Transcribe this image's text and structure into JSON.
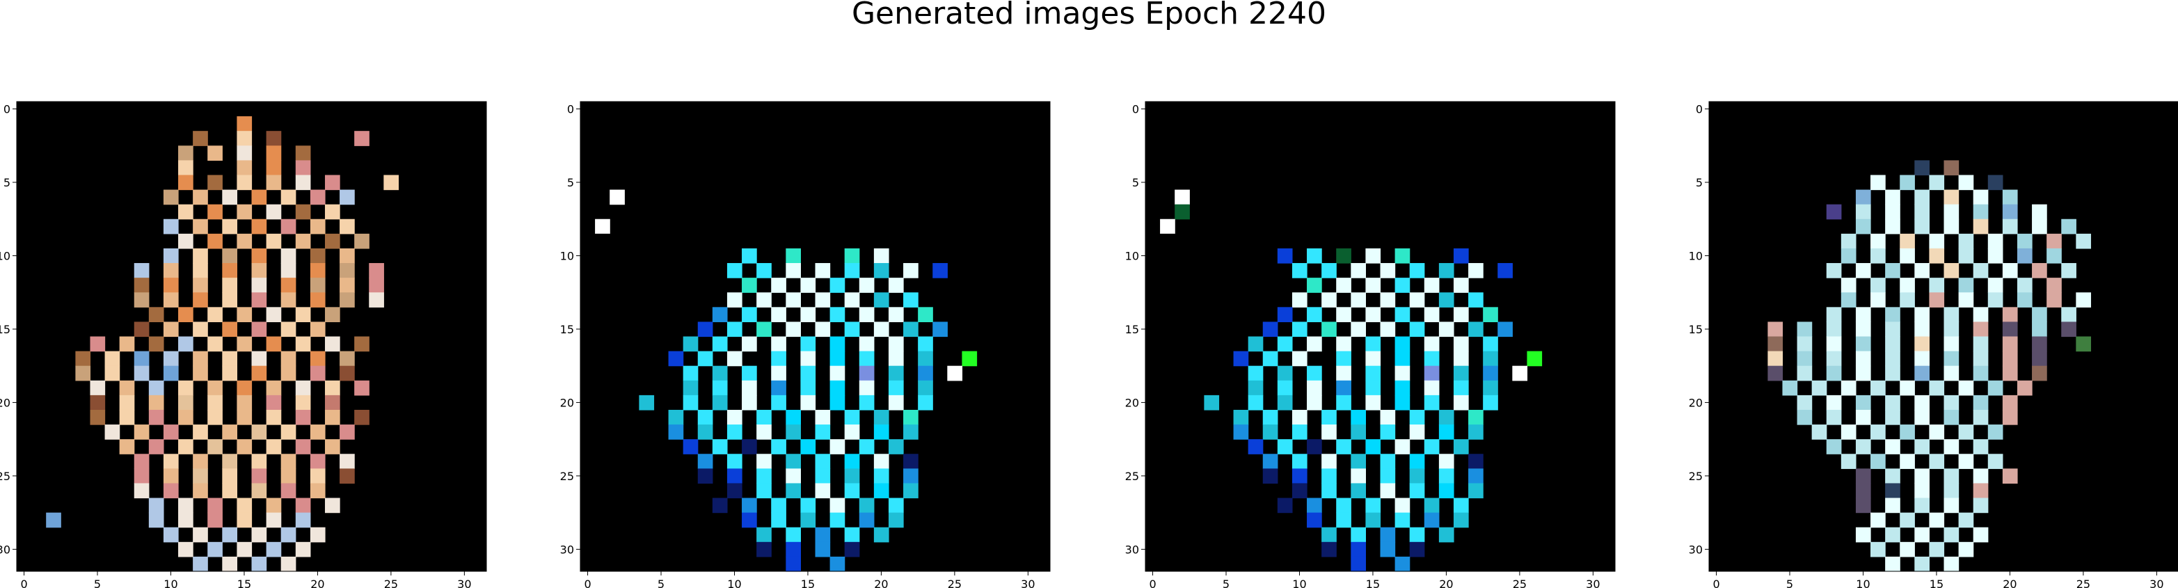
{
  "title": "Generated images Epoch 2240",
  "chart_data": {
    "type": "heatmap",
    "title": "Generated images Epoch 2240",
    "grid": false,
    "panels": [
      {
        "name": "",
        "x_ticks": [
          0,
          5,
          10,
          15,
          20,
          25,
          30
        ],
        "y_ticks": [
          0,
          5,
          10,
          15,
          20,
          25,
          30
        ],
        "xlim": [
          -0.5,
          31.5
        ],
        "ylim": [
          31.5,
          -0.5
        ],
        "palette": [
          "#000000",
          "#f6d3ab",
          "#e9b88a",
          "#e58d4f",
          "#c9a27a",
          "#a36b3f",
          "#8a4e33",
          "#d98c8c",
          "#f0e6dc",
          "#b0c8e6",
          "#6fa3d8",
          "#c47a6e",
          "#e4c29a"
        ],
        "rows": [
          "................................",
          "...............3................",
          "............5..1.6.....7........",
          "...........4.2.8.3.5.....71.....",
          "...........1...2.3.7............",
          "...........3.5.1.2.8.7...1......",
          "..........4.2.8.3.1.7.9.........",
          "...........1.3.2.8.5.1..........",
          "..........9.2.1.3.7.2.1.........",
          "...........8.3.2.1.2.5.4........",
          "..........9.1.4.3.8.5.2.........",
          "........9.2.1.3.2.8.3.4.7.......",
          "........5.3.2.1.8.3.4.2.7.......",
          "........4.2.3.1.7.2.3.4.8.......",
          ".........5.3.1.2.8.1.4..........",
          "........6.2.1.3.7.1.2...........",
          ".....7.2.5.9.1.2.3.1.8.5........",
          "....5.1.10.9.2.1.8.2.3.4........",
          "....4.1.9.10.2.1.3.2.7.6.......",
          ".....8.2.9.1.2.3.2.8.1.7........",
          ".....6.1.2.12.1.2.7.1.11.......",
          ".....5.1.7.2.1.2.1.7.2.6........",
          "......8.2.7.1.2.12.1.2.7........",
          ".......2.7.1.12.2.1.7.2.........",
          "........7.1.2.12.1.2.7.8.......",
          "........7.2.12.1.7.2.1.6.......",
          "........8.7.2.1.12.7.2.........",
          ".........9.8.7.1.2.7.8..........",
          "..10......9.8.7.1.8.9...........",
          "..........9.8.9.8.9.8...........",
          "...........8.9.8.9.8............",
          "............9.8.9.8.............",
          "..............8.8..............."
        ]
      },
      {
        "name": "",
        "x_ticks": [
          0,
          5,
          10,
          15,
          20,
          25,
          30
        ],
        "y_ticks": [
          0,
          5,
          10,
          15,
          20,
          25,
          30
        ],
        "xlim": [
          -0.5,
          31.5
        ],
        "ylim": [
          31.5,
          -0.5
        ],
        "palette": [
          "#000000",
          "#e8ffff",
          "#33e6ff",
          "#1fbfd6",
          "#1a8fe0",
          "#0a3fd9",
          "#0b1a66",
          "#7a8fe0",
          "#00d9ff",
          "#2ee8c8",
          "#23ff23",
          "#ffffff"
        ],
        "rows": [
          "................................",
          "................................",
          "................................",
          "................................",
          "................................",
          "................................",
          "..11............................",
          "................................",
          ".11.............................",
          ".111............................",
          ".111.........2..9...9.1.........",
          "..........2.2.1.1.2.3.1.5.......",
          "...........9.1.1.2.1.1..........",
          "..........1.1.1.1.1.3.2.........",
          ".........4.2.1.1.2.1.1.9.......",
          "........5.2.9.1.1.2.1.3.4......",
          ".......3.2.1.1.2.8.1.1.2......",
          "......5.2.1..2.1.8.2.1.3..10...",
          ".......2.3.2.1.2.1.7.3.4.11....",
          ".......3.2.1.4.2.8.1.2.3.......",
          "....3..2.3.1.2.1.8.2.1.2.......",
          "......3.2.1.2.8.1.2.3.9........",
          "......4.3.2.1.3.2.1.8.3........",
          ".......5.2.6.2.8.1.2.3.........",
          "........4.2.1.3.2.8.1.6........",
          "........6.5.2.1.2.3.2.4.........",
          "..........6.2.3.1.2.8.3.........",
          ".........6.4.2.2.1.3.2..........",
          "...........5.2.3.2.4.3..........",
          "............3.2.4.2.3...........",
          "............6.5.4.6.............",
          "..............5..4..............",
          "................................"
        ]
      },
      {
        "name": "",
        "x_ticks": [
          0,
          5,
          10,
          15,
          20,
          25,
          30
        ],
        "y_ticks": [
          0,
          5,
          10,
          15,
          20,
          25,
          30
        ],
        "xlim": [
          -0.5,
          31.5
        ],
        "ylim": [
          31.5,
          -0.5
        ],
        "palette": [
          "#000000",
          "#e8ffff",
          "#33e6ff",
          "#1fbfd6",
          "#1a8fe0",
          "#0a3fd9",
          "#0b1a66",
          "#7a8fe0",
          "#00d9ff",
          "#2ee8c8",
          "#23ff23",
          "#ffffff",
          "#0a5f2f"
        ],
        "rows": [
          "................................",
          "................................",
          "................................",
          "................................",
          "................................",
          "................................",
          "..11............................",
          "..12............................",
          ".11.............................",
          ".111............................",
          ".111.......5.2.12.1.9...5.......",
          "..........2.2.1.1.2.3.1.5.......",
          "...........9.1.1.2.1.1..........",
          "..........1.1.1.1.1.3.2.........",
          ".........5.2.1.1.2.1.1.9.......",
          "........5.2.9.1.1.2.1.3.4......",
          ".......3.2.1.1.2.8.1.1.2......",
          "......5.2.1..2.1.8.2.1.3..10...",
          ".......2.3.2.1.2.1.7.3.4.11....",
          ".......3.2.1.4.2.8.1.2.3.......",
          "....3..2.3.1.2.1.8.2.1.2.......",
          "......3.2.1.2.8.1.2.3.9........",
          "......4.3.2.1.3.2.1.8.3........",
          ".......5.2.6.2.8.1.2.3.........",
          "........4.2.1.3.2.8.1.6........",
          "........6.5.2.1.2.3.2.4.........",
          "..........6.2.3.1.2.8.3.........",
          ".........6.4.2.2.1.3.2..........",
          "...........5.2.3.2.4.3..........",
          "............3.2.4.2.3...........",
          "............6.5.4.6.............",
          "..............5..4..............",
          "................................"
        ]
      },
      {
        "name": "",
        "x_ticks": [
          0,
          5,
          10,
          15,
          20,
          25,
          30
        ],
        "y_ticks": [
          0,
          5,
          10,
          15,
          20,
          25,
          30
        ],
        "xlim": [
          -0.5,
          31.5
        ],
        "ylim": [
          31.5,
          -0.5
        ],
        "palette": [
          "#000000",
          "#e8ffff",
          "#bfe9ee",
          "#9fd6e0",
          "#7fb0d9",
          "#f2d9b8",
          "#d9a8a0",
          "#8e6a5a",
          "#5a4e6a",
          "#3f7f3f",
          "#4a3f8a",
          "#c9b8e6",
          "#2a4060"
        ],
        "rows": [
          "................................",
          "................................",
          "................................",
          "................................",
          "..............12.7..............",
          "...........1.3.2.1.12...........",
          "..........4.1.2.5.1.3..........",
          "........10.2.1.2.1.3.4.1.......",
          "..........3.1.2.1.5.2.1.3.....",
          ".........2.1.5.1.2.1.3.6.2.....",
          ".........3.2.1.5.2.1.4.3.......",
          "........2.1.3.1.5.2.1.6.2......",
          ".........1.2.1.2.3.1.2.6.......",
          ".........3.1.2.6.1.2.3.6.1.....",
          "........2.1.3.1.2.1.6.3.2......",
          "....6.3.2.1.2.1.2.6.8.3.8......",
          "....7.2.1.3.2.5.1.2.6.8..9.....",
          "....5.3.2.1.2.1.3.2.6.8.......",
          "....8.2.3.1.2.4.1.3.6.7.......",
          ".....3.2.1.2.1.2.1.3.6.........",
          "......2.1.3.2.1.2.3.6..........",
          "......3.2.1.2.1.3.2.6..........",
          ".......2.1.2.3.1.2.3...........",
          "........3.2.1.2.1.2............",
          ".........2.3.1.2.1.2...........",
          "..........8.2.1.2.1.6..........",
          "..........8.12.1.2.6...........",
          "..........8.1.2.1.2............",
          "...........1.2.1.2.............",
          "..........1.2.1.2.1............",
          "...........2.1.2.1.............",
          "............1.2.1..............",
          "................................"
        ]
      }
    ]
  }
}
